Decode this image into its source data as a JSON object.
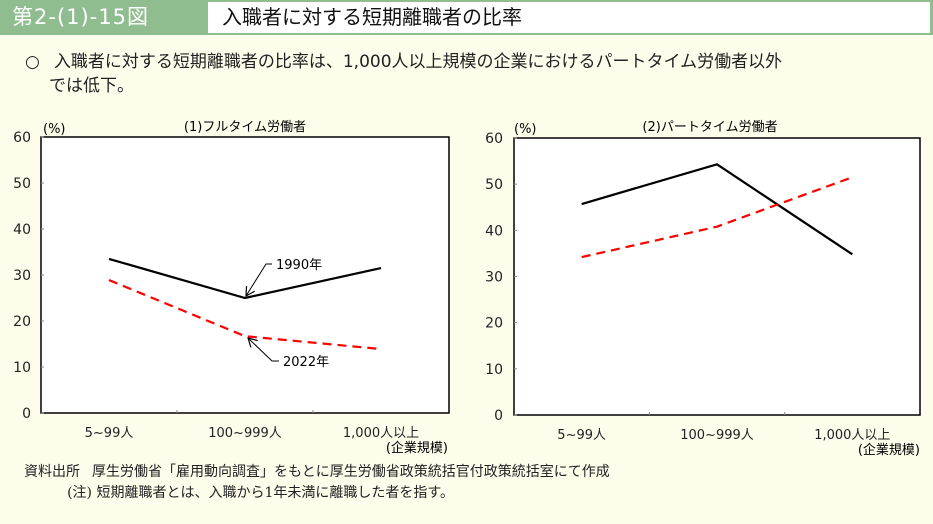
{
  "header": {
    "figure_number": "第2-(1)-15図",
    "title": "入職者に対する短期離職者の比率",
    "colors": {
      "band": "#8fbd8f",
      "title_bg": "#ffffff"
    }
  },
  "summary": {
    "bullet": "○",
    "line1": "入職者に対する短期離職者の比率は、1,000人以上規模の企業におけるパートタイム労働者以外",
    "line2": "では低下。"
  },
  "chart_data": [
    {
      "type": "line",
      "title": "(1)フルタイム労働者",
      "ylabel": "(%)",
      "xlabel": "(企業規模)",
      "categories": [
        "5~99人",
        "100~999人",
        "1,000人以上"
      ],
      "ylim": [
        0,
        60
      ],
      "yticks": [
        0,
        10,
        20,
        30,
        40,
        50,
        60
      ],
      "grid": false,
      "series": [
        {
          "name": "1990年",
          "values": [
            33.5,
            25.0,
            31.5
          ],
          "color": "#000000",
          "style": "solid"
        },
        {
          "name": "2022年",
          "values": [
            28.9,
            16.7,
            13.9
          ],
          "color": "#ff0000",
          "style": "dashed"
        }
      ],
      "annotations": [
        {
          "text": "1990年",
          "series": "1990年",
          "category": "100~999人"
        },
        {
          "text": "2022年",
          "series": "2022年",
          "category": "100~999人"
        }
      ]
    },
    {
      "type": "line",
      "title": "(2)パートタイム労働者",
      "ylabel": "(%)",
      "xlabel": "(企業規模)",
      "categories": [
        "5~99人",
        "100~999人",
        "1,000人以上"
      ],
      "ylim": [
        0,
        60
      ],
      "yticks": [
        0,
        10,
        20,
        30,
        40,
        50,
        60
      ],
      "grid": false,
      "series": [
        {
          "name": "1990年",
          "values": [
            45.7,
            54.3,
            34.8
          ],
          "color": "#000000",
          "style": "solid"
        },
        {
          "name": "2022年",
          "values": [
            34.2,
            40.8,
            51.5
          ],
          "color": "#ff0000",
          "style": "dashed"
        }
      ]
    }
  ],
  "footer": {
    "source_label": "資料出所",
    "source_text": "厚生労働省「雇用動向調査」をもとに厚生労働省政策統括官付政策統括室にて作成",
    "note_label": "(注)",
    "note_text": "短期離職者とは、入職から1年未満に離職した者を指す。"
  }
}
